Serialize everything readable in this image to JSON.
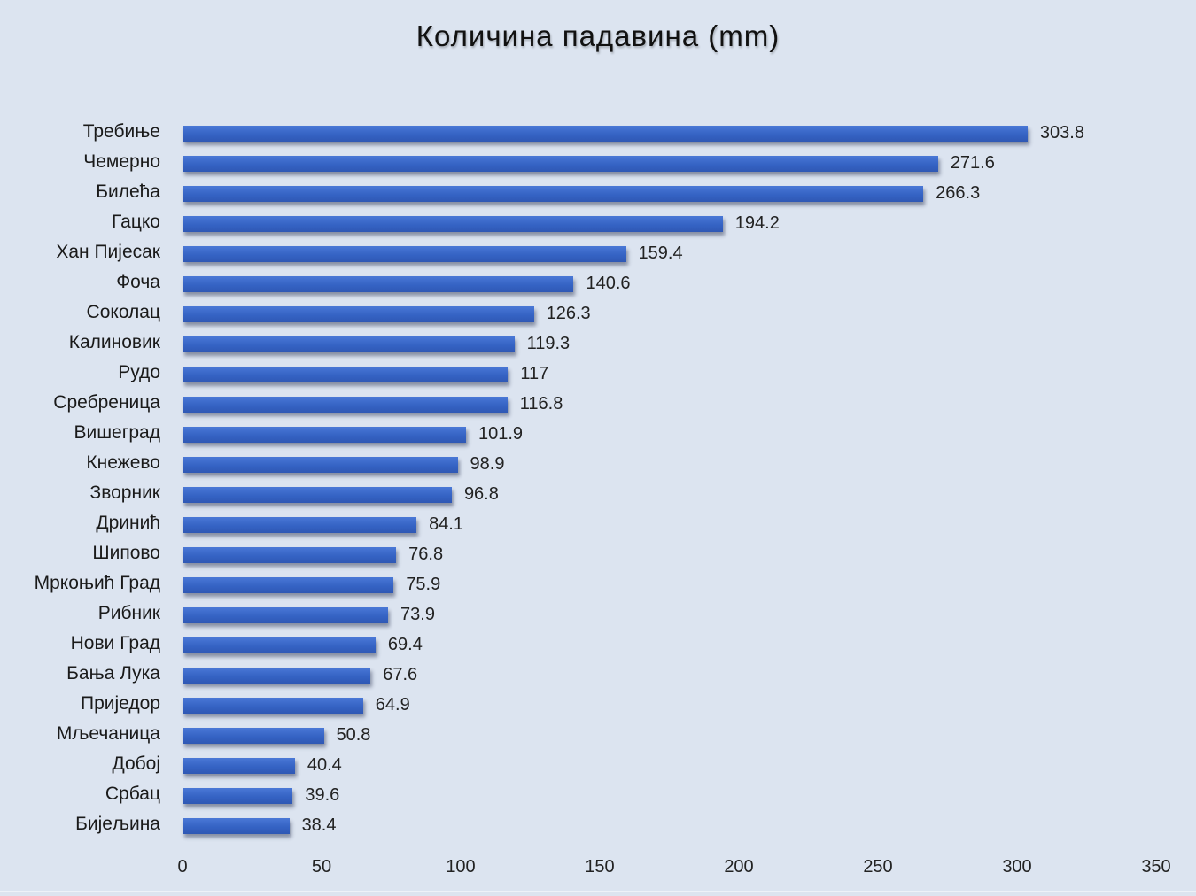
{
  "chart_data": {
    "type": "bar",
    "orientation": "horizontal",
    "title": "Количина падавина (mm)",
    "xlabel": "",
    "ylabel": "",
    "xlim": [
      0,
      350
    ],
    "x_ticks": [
      "0",
      "50",
      "100",
      "150",
      "200",
      "250",
      "300",
      "350"
    ],
    "grid": false,
    "legend": null,
    "data_labels": true,
    "bar_color": "#3a66c8",
    "background_color": "#dde4ef",
    "categories": [
      "Требиње",
      "Чемерно",
      "Билећа",
      "Гацко",
      "Хан Пијесак",
      "Фоча",
      "Соколац",
      "Калиновик",
      "Рудо",
      "Сребреница",
      "Вишеград",
      "Кнежево",
      "Зворник",
      "Дринић",
      "Шипово",
      "Мркоњић Град",
      "Рибник",
      "Нови Град",
      "Бања Лука",
      "Приједор",
      "Мљечаница",
      "Добој",
      "Србац",
      "Бијељина"
    ],
    "values": [
      303.8,
      271.6,
      266.3,
      194.2,
      159.4,
      140.6,
      126.3,
      119.3,
      117,
      116.8,
      101.9,
      98.9,
      96.8,
      84.1,
      76.8,
      75.9,
      73.9,
      69.4,
      67.6,
      64.9,
      50.8,
      40.4,
      39.6,
      38.4
    ],
    "value_labels": [
      "303.8",
      "271.6",
      "266.3",
      "194.2",
      "159.4",
      "140.6",
      "126.3",
      "119.3",
      "117",
      "116.8",
      "101.9",
      "98.9",
      "96.8",
      "84.1",
      "76.8",
      "75.9",
      "73.9",
      "69.4",
      "67.6",
      "64.9",
      "50.8",
      "40.4",
      "39.6",
      "38.4"
    ]
  }
}
